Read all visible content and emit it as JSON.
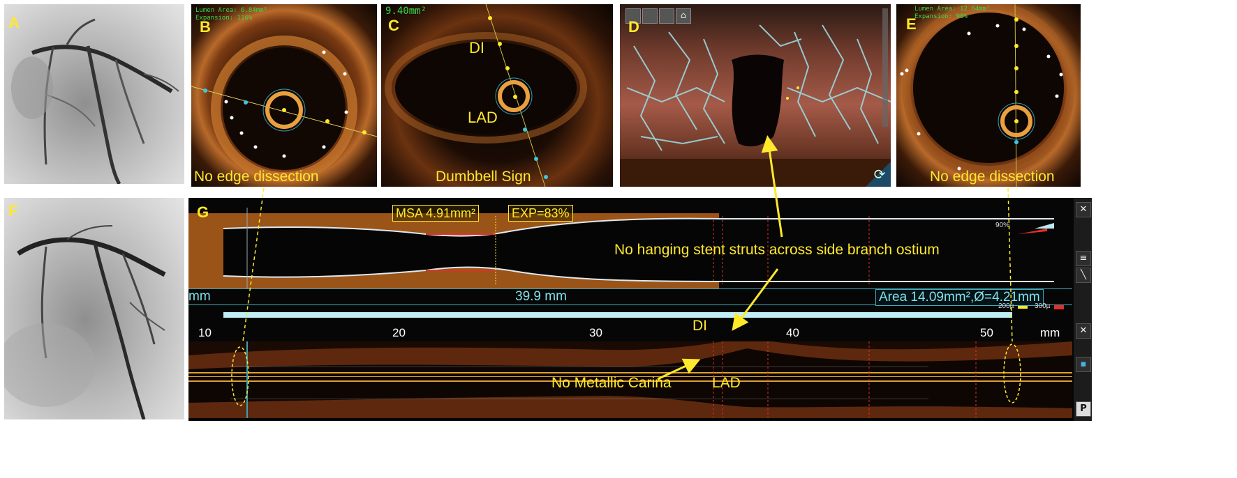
{
  "panels": {
    "a": {
      "label": "A"
    },
    "b": {
      "label": "B",
      "hud_line1": "Lumen Area: 6.84mm²",
      "hud_line2": "Expansion: 116%",
      "caption": "No edge dissection"
    },
    "c": {
      "label": "C",
      "area": "9.40mm²",
      "branch_label": "DI",
      "vessel_label": "LAD",
      "caption": "Dumbbell Sign"
    },
    "d": {
      "label": "D"
    },
    "e": {
      "label": "E",
      "hud_line1": "Lumen Area: 12.64mm²",
      "hud_line2": "Expansion: 98%",
      "caption": "No edge dissection"
    },
    "f": {
      "label": "F"
    },
    "g": {
      "label": "G",
      "msa": "MSA 4.91mm²",
      "exp": "EXP=83%",
      "pct_90": "90%",
      "length_prefix": "mm",
      "length": "39.9 mm",
      "area_readout": "Area 14.09mm²,Ø=4.21mm",
      "scale_200": "200µ",
      "scale_300": "300µ",
      "axis_ticks": [
        "10",
        "20",
        "30",
        "40",
        "50"
      ],
      "axis_unit": "mm",
      "branch_label": "DI",
      "vessel_label": "LAD",
      "p_button": "P",
      "close_symbol": "✕"
    }
  },
  "annotations": {
    "hanging_struts": "No hanging stent struts across side branch ostium",
    "carina": "No Metallic Carina"
  },
  "colors": {
    "annotation": "#ffe92a",
    "measure": "#7fe0ea",
    "hud": "#39d84a"
  }
}
